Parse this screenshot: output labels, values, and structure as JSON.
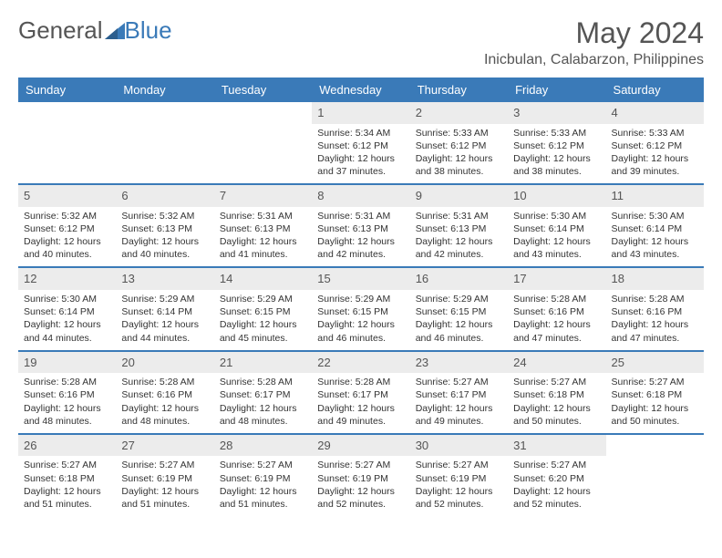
{
  "logo": {
    "part1": "General",
    "part2": "Blue"
  },
  "title": "May 2024",
  "location": "Inicbulan, Calabarzon, Philippines",
  "colors": {
    "header_bg": "#3a7ab8",
    "daynum_bg": "#ececec",
    "text": "#333333",
    "muted": "#555555",
    "week_border": "#3a7ab8"
  },
  "days_of_week": [
    "Sunday",
    "Monday",
    "Tuesday",
    "Wednesday",
    "Thursday",
    "Friday",
    "Saturday"
  ],
  "weeks": [
    [
      null,
      null,
      null,
      {
        "n": "1",
        "sr": "5:34 AM",
        "ss": "6:12 PM",
        "dl": "12 hours and 37 minutes."
      },
      {
        "n": "2",
        "sr": "5:33 AM",
        "ss": "6:12 PM",
        "dl": "12 hours and 38 minutes."
      },
      {
        "n": "3",
        "sr": "5:33 AM",
        "ss": "6:12 PM",
        "dl": "12 hours and 38 minutes."
      },
      {
        "n": "4",
        "sr": "5:33 AM",
        "ss": "6:12 PM",
        "dl": "12 hours and 39 minutes."
      }
    ],
    [
      {
        "n": "5",
        "sr": "5:32 AM",
        "ss": "6:12 PM",
        "dl": "12 hours and 40 minutes."
      },
      {
        "n": "6",
        "sr": "5:32 AM",
        "ss": "6:13 PM",
        "dl": "12 hours and 40 minutes."
      },
      {
        "n": "7",
        "sr": "5:31 AM",
        "ss": "6:13 PM",
        "dl": "12 hours and 41 minutes."
      },
      {
        "n": "8",
        "sr": "5:31 AM",
        "ss": "6:13 PM",
        "dl": "12 hours and 42 minutes."
      },
      {
        "n": "9",
        "sr": "5:31 AM",
        "ss": "6:13 PM",
        "dl": "12 hours and 42 minutes."
      },
      {
        "n": "10",
        "sr": "5:30 AM",
        "ss": "6:14 PM",
        "dl": "12 hours and 43 minutes."
      },
      {
        "n": "11",
        "sr": "5:30 AM",
        "ss": "6:14 PM",
        "dl": "12 hours and 43 minutes."
      }
    ],
    [
      {
        "n": "12",
        "sr": "5:30 AM",
        "ss": "6:14 PM",
        "dl": "12 hours and 44 minutes."
      },
      {
        "n": "13",
        "sr": "5:29 AM",
        "ss": "6:14 PM",
        "dl": "12 hours and 44 minutes."
      },
      {
        "n": "14",
        "sr": "5:29 AM",
        "ss": "6:15 PM",
        "dl": "12 hours and 45 minutes."
      },
      {
        "n": "15",
        "sr": "5:29 AM",
        "ss": "6:15 PM",
        "dl": "12 hours and 46 minutes."
      },
      {
        "n": "16",
        "sr": "5:29 AM",
        "ss": "6:15 PM",
        "dl": "12 hours and 46 minutes."
      },
      {
        "n": "17",
        "sr": "5:28 AM",
        "ss": "6:16 PM",
        "dl": "12 hours and 47 minutes."
      },
      {
        "n": "18",
        "sr": "5:28 AM",
        "ss": "6:16 PM",
        "dl": "12 hours and 47 minutes."
      }
    ],
    [
      {
        "n": "19",
        "sr": "5:28 AM",
        "ss": "6:16 PM",
        "dl": "12 hours and 48 minutes."
      },
      {
        "n": "20",
        "sr": "5:28 AM",
        "ss": "6:16 PM",
        "dl": "12 hours and 48 minutes."
      },
      {
        "n": "21",
        "sr": "5:28 AM",
        "ss": "6:17 PM",
        "dl": "12 hours and 48 minutes."
      },
      {
        "n": "22",
        "sr": "5:28 AM",
        "ss": "6:17 PM",
        "dl": "12 hours and 49 minutes."
      },
      {
        "n": "23",
        "sr": "5:27 AM",
        "ss": "6:17 PM",
        "dl": "12 hours and 49 minutes."
      },
      {
        "n": "24",
        "sr": "5:27 AM",
        "ss": "6:18 PM",
        "dl": "12 hours and 50 minutes."
      },
      {
        "n": "25",
        "sr": "5:27 AM",
        "ss": "6:18 PM",
        "dl": "12 hours and 50 minutes."
      }
    ],
    [
      {
        "n": "26",
        "sr": "5:27 AM",
        "ss": "6:18 PM",
        "dl": "12 hours and 51 minutes."
      },
      {
        "n": "27",
        "sr": "5:27 AM",
        "ss": "6:19 PM",
        "dl": "12 hours and 51 minutes."
      },
      {
        "n": "28",
        "sr": "5:27 AM",
        "ss": "6:19 PM",
        "dl": "12 hours and 51 minutes."
      },
      {
        "n": "29",
        "sr": "5:27 AM",
        "ss": "6:19 PM",
        "dl": "12 hours and 52 minutes."
      },
      {
        "n": "30",
        "sr": "5:27 AM",
        "ss": "6:19 PM",
        "dl": "12 hours and 52 minutes."
      },
      {
        "n": "31",
        "sr": "5:27 AM",
        "ss": "6:20 PM",
        "dl": "12 hours and 52 minutes."
      },
      null
    ]
  ],
  "labels": {
    "sunrise": "Sunrise:",
    "sunset": "Sunset:",
    "daylight": "Daylight:"
  }
}
